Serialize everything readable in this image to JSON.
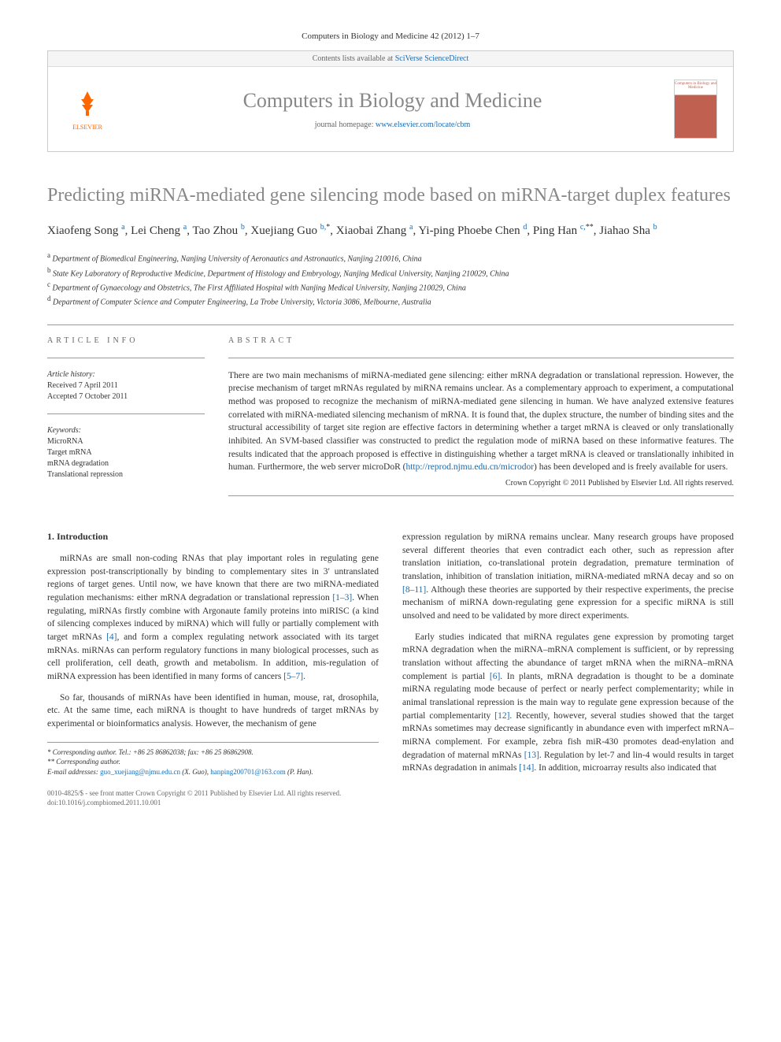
{
  "journal_ref": "Computers in Biology and Medicine 42 (2012) 1–7",
  "header": {
    "contents_text": "Contents lists available at ",
    "contents_link": "SciVerse ScienceDirect",
    "journal_title": "Computers in Biology and Medicine",
    "homepage_label": "journal homepage: ",
    "homepage_url": "www.elsevier.com/locate/cbm",
    "publisher": "ELSEVIER",
    "cover_title": "Computers in Biology and Medicine"
  },
  "article": {
    "title": "Predicting miRNA-mediated gene silencing mode based on miRNA-target duplex features",
    "authors_html": "Xiaofeng Song <sup>a</sup>, Lei Cheng <sup>a</sup>, Tao Zhou <sup>b</sup>, Xuejiang Guo <sup>b,</sup><sup class='corr'>*</sup>, Xiaobai Zhang <sup>a</sup>, Yi-ping Phoebe Chen <sup>d</sup>, Ping Han <sup>c,</sup><sup class='corr'>**</sup>, Jiahao Sha <sup>b</sup>",
    "affiliations": [
      {
        "sup": "a",
        "text": "Department of Biomedical Engineering, Nanjing University of Aeronautics and Astronautics, Nanjing 210016, China"
      },
      {
        "sup": "b",
        "text": "State Key Laboratory of Reproductive Medicine, Department of Histology and Embryology, Nanjing Medical University, Nanjing 210029, China"
      },
      {
        "sup": "c",
        "text": "Department of Gynaecology and Obstetrics, The First Affiliated Hospital with Nanjing Medical University, Nanjing 210029, China"
      },
      {
        "sup": "d",
        "text": "Department of Computer Science and Computer Engineering, La Trobe University, Victoria 3086, Melbourne, Australia"
      }
    ]
  },
  "info": {
    "heading": "ARTICLE INFO",
    "history_label": "Article history:",
    "received": "Received 7 April 2011",
    "accepted": "Accepted 7 October 2011",
    "keywords_label": "Keywords:",
    "keywords": [
      "MicroRNA",
      "Target mRNA",
      "mRNA degradation",
      "Translational repression"
    ]
  },
  "abstract": {
    "heading": "ABSTRACT",
    "text": "There are two main mechanisms of miRNA-mediated gene silencing: either mRNA degradation or translational repression. However, the precise mechanism of target mRNAs regulated by miRNA remains unclear. As a complementary approach to experiment, a computational method was proposed to recognize the mechanism of miRNA-mediated gene silencing in human. We have analyzed extensive features correlated with miRNA-mediated silencing mechanism of mRNA. It is found that, the duplex structure, the number of binding sites and the structural accessibility of target site region are effective factors in determining whether a target mRNA is cleaved or only translationally inhibited. An SVM-based classifier was constructed to predict the regulation mode of miRNA based on these informative features. The results indicated that the approach proposed is effective in distinguishing whether a target mRNA is cleaved or translationally inhibited in human. Furthermore, the web server microDoR (",
    "link": "http://reprod.njmu.edu.cn/microdor",
    "text_after": ") has been developed and is freely available for users.",
    "copyright": "Crown Copyright © 2011 Published by Elsevier Ltd. All rights reserved."
  },
  "body": {
    "heading": "1. Introduction",
    "col1_paragraphs": [
      "miRNAs are small non-coding RNAs that play important roles in regulating gene expression post-transcriptionally by binding to complementary sites in 3′ untranslated regions of target genes. Until now, we have known that there are two miRNA-mediated regulation mechanisms: either mRNA degradation or translational repression <a>[1–3]</a>. When regulating, miRNAs firstly combine with Argonaute family proteins into miRISC (a kind of silencing complexes induced by miRNA) which will fully or partially complement with target mRNAs <a>[4]</a>, and form a complex regulating network associated with its target mRNAs. miRNAs can perform regulatory functions in many biological processes, such as cell proliferation, cell death, growth and metabolism. In addition, mis-regulation of miRNA expression has been identified in many forms of cancers <a>[5–7]</a>.",
      "So far, thousands of miRNAs have been identified in human, mouse, rat, drosophila, etc. At the same time, each miRNA is thought to have hundreds of target mRNAs by experimental or bioinformatics analysis. However, the mechanism of gene"
    ],
    "col2_paragraphs": [
      "expression regulation by miRNA remains unclear. Many research groups have proposed several different theories that even contradict each other, such as repression after translation initiation, co-translational protein degradation, premature termination of translation, inhibition of translation initiation, miRNA-mediated mRNA decay and so on <a>[8–11]</a>. Although these theories are supported by their respective experiments, the precise mechanism of miRNA down-regulating gene expression for a specific miRNA is still unsolved and need to be validated by more direct experiments.",
      "Early studies indicated that miRNA regulates gene expression by promoting target mRNA degradation when the miRNA–mRNA complement is sufficient, or by repressing translation without affecting the abundance of target mRNA when the miRNA–mRNA complement is partial <a>[6]</a>. In plants, mRNA degradation is thought to be a dominate miRNA regulating mode because of perfect or nearly perfect complementarity; while in animal translational repression is the main way to regulate gene expression because of the partial complementarity <a>[12]</a>. Recently, however, several studies showed that the target mRNAs sometimes may decrease significantly in abundance even with imperfect mRNA–miRNA complement. For example, zebra fish miR-430 promotes dead-enylation and degradation of maternal mRNAs <a>[13]</a>. Regulation by let-7 and lin-4 would results in target mRNAs degradation in animals <a>[14]</a>. In addition, microarray results also indicated that"
    ]
  },
  "footnotes": {
    "corr1_label": "* Corresponding author. Tel.: +86 25 86862038; fax: +86 25 86862908.",
    "corr2_label": "** Corresponding author.",
    "email_label": "E-mail addresses:",
    "email1": "guo_xuejiang@njmu.edu.cn",
    "email1_name": "(X. Guo),",
    "email2": "hanping200701@163.com",
    "email2_name": "(P. Han)."
  },
  "footer": {
    "line1": "0010-4825/$ - see front matter Crown Copyright © 2011 Published by Elsevier Ltd. All rights reserved.",
    "line2": "doi:10.1016/j.compbiomed.2011.10.001"
  },
  "colors": {
    "link": "#1a6bb0",
    "title_gray": "#888888",
    "elsevier_orange": "#ff6600",
    "divider": "#999999"
  }
}
